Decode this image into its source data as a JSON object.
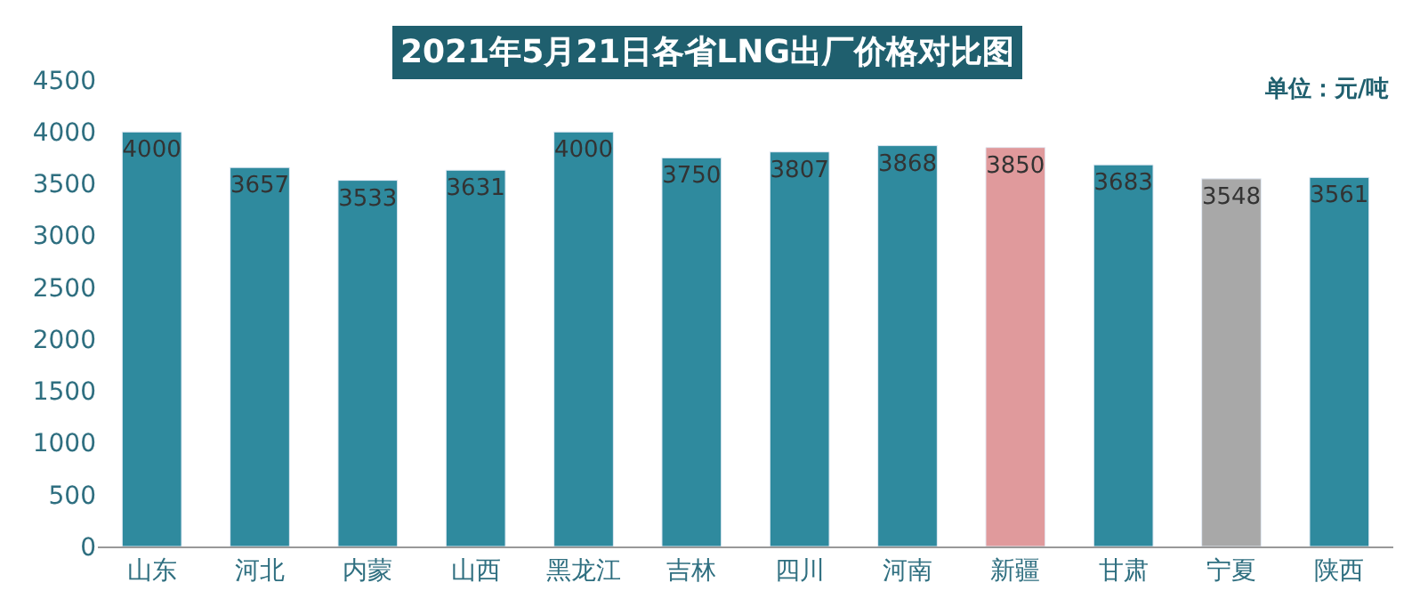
{
  "chart_data": {
    "type": "bar",
    "title": "2021年5月21日各省LNG出厂价格对比图",
    "annotations": [
      "单位：元/吨"
    ],
    "categories": [
      "山东",
      "河北",
      "内蒙",
      "山西",
      "黑龙江",
      "吉林",
      "四川",
      "河南",
      "新疆",
      "甘肃",
      "宁夏",
      "陕西"
    ],
    "values": [
      4000,
      3657,
      3533,
      3631,
      4000,
      3750,
      3807,
      3868,
      3850,
      3683,
      3548,
      3561
    ],
    "colors": [
      "#2f8a9e",
      "#2f8a9e",
      "#2f8a9e",
      "#2f8a9e",
      "#2f8a9e",
      "#2f8a9e",
      "#2f8a9e",
      "#2f8a9e",
      "#e09a9c",
      "#2f8a9e",
      "#a8a8a8",
      "#2f8a9e"
    ],
    "ylim": [
      0,
      4500
    ],
    "yticks": [
      0,
      500,
      1000,
      1500,
      2000,
      2500,
      3000,
      3500,
      4000,
      4500
    ],
    "data_labels": true
  }
}
